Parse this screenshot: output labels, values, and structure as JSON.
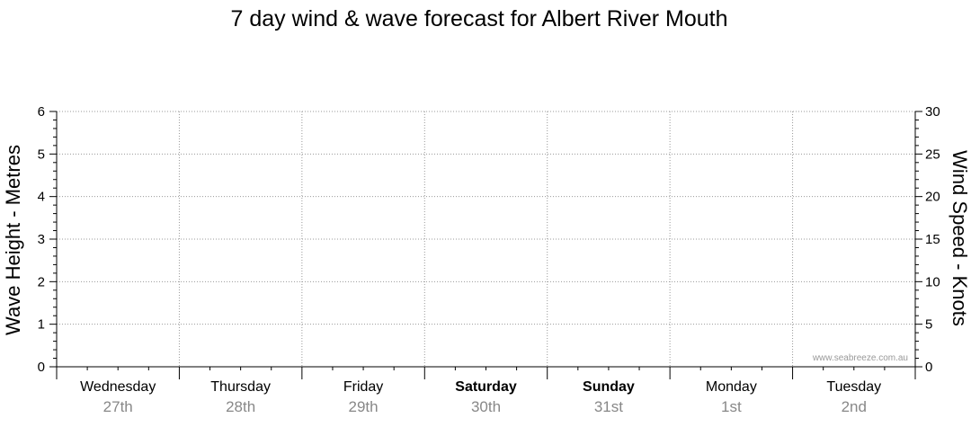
{
  "chart_data": {
    "type": "line",
    "title": "7 day wind & wave forecast for Albert River Mouth",
    "ylabel_left": "Wave Height - Metres",
    "ylabel_right": "Wind Speed - Knots",
    "ylim_left": [
      0,
      6
    ],
    "ylim_right": [
      0,
      30
    ],
    "yticks_left": [
      0,
      1,
      2,
      3,
      4,
      5,
      6
    ],
    "yticks_right": [
      0,
      5,
      10,
      15,
      20,
      25,
      30
    ],
    "grid": true,
    "days": [
      {
        "day": "Wednesday",
        "date": "27th",
        "bold": false
      },
      {
        "day": "Thursday",
        "date": "28th",
        "bold": false
      },
      {
        "day": "Friday",
        "date": "29th",
        "bold": false
      },
      {
        "day": "Saturday",
        "date": "30th",
        "bold": true
      },
      {
        "day": "Sunday",
        "date": "31st",
        "bold": true
      },
      {
        "day": "Monday",
        "date": "1st",
        "bold": false
      },
      {
        "day": "Tuesday",
        "date": "2nd",
        "bold": false
      }
    ],
    "series": [],
    "credit": "www.seabreeze.com.au",
    "colors": {
      "grid": "#999999",
      "axis": "#000000",
      "date_text": "#888888",
      "credit_text": "#999999"
    }
  }
}
